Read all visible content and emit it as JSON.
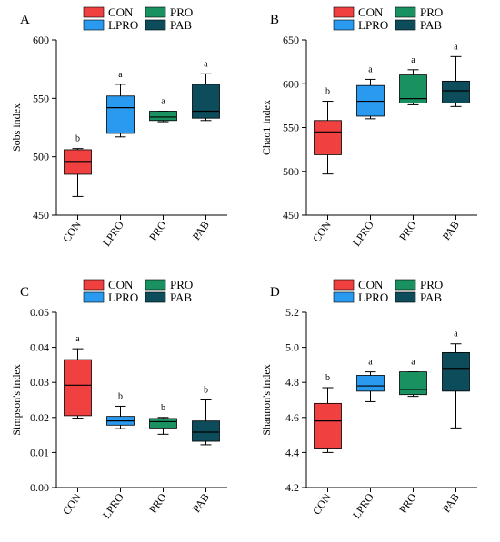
{
  "colors": {
    "CON": "#f04040",
    "LPRO": "#2a9af0",
    "PRO": "#1a9160",
    "PAB": "#0d4c5a"
  },
  "chart_data": [
    {
      "type": "box",
      "panel": "A",
      "ylabel": "Sobs index",
      "ylim": [
        450,
        600
      ],
      "yticks": [
        "450",
        "500",
        "550",
        "600"
      ],
      "legend": [
        "CON",
        "PRO",
        "LPRO",
        "PAB"
      ],
      "categories": [
        "CON",
        "LPRO",
        "PRO",
        "PAB"
      ],
      "boxes": [
        {
          "min": 466,
          "q1": 485,
          "median": 496,
          "q3": 506,
          "max": 507,
          "sig": "b"
        },
        {
          "min": 517,
          "q1": 520,
          "median": 542,
          "q3": 552,
          "max": 562,
          "sig": "a"
        },
        {
          "min": 530,
          "q1": 531,
          "median": 534,
          "q3": 539,
          "max": 539,
          "sig": "a"
        },
        {
          "min": 531,
          "q1": 533,
          "median": 539,
          "q3": 562,
          "max": 571,
          "sig": "a"
        }
      ]
    },
    {
      "type": "box",
      "panel": "B",
      "ylabel": "Chao1 index",
      "ylim": [
        450,
        650
      ],
      "yticks": [
        "450",
        "500",
        "550",
        "600",
        "650"
      ],
      "legend": [
        "CON",
        "PRO",
        "LPRO",
        "PAB"
      ],
      "categories": [
        "CON",
        "LPRO",
        "PRO",
        "PAB"
      ],
      "boxes": [
        {
          "min": 497,
          "q1": 519,
          "median": 545,
          "q3": 558,
          "max": 580,
          "sig": "b"
        },
        {
          "min": 560,
          "q1": 563,
          "median": 580,
          "q3": 598,
          "max": 605,
          "sig": "a"
        },
        {
          "min": 576,
          "q1": 578,
          "median": 583,
          "q3": 610,
          "max": 616,
          "sig": "a"
        },
        {
          "min": 574,
          "q1": 578,
          "median": 592,
          "q3": 603,
          "max": 631,
          "sig": "a"
        }
      ]
    },
    {
      "type": "box",
      "panel": "C",
      "ylabel": "Simpson's index",
      "ylim": [
        0.0,
        0.05
      ],
      "yticks": [
        "0.00",
        "0.01",
        "0.02",
        "0.03",
        "0.04",
        "0.05"
      ],
      "legend": [
        "CON",
        "PRO",
        "LPRO",
        "PAB"
      ],
      "categories": [
        "CON",
        "LPRO",
        "PRO",
        "PAB"
      ],
      "boxes": [
        {
          "min": 0.0198,
          "q1": 0.0205,
          "median": 0.0292,
          "q3": 0.0365,
          "max": 0.0396,
          "sig": "a"
        },
        {
          "min": 0.0168,
          "q1": 0.0178,
          "median": 0.019,
          "q3": 0.0203,
          "max": 0.0232,
          "sig": "b"
        },
        {
          "min": 0.0152,
          "q1": 0.017,
          "median": 0.0188,
          "q3": 0.0197,
          "max": 0.02,
          "sig": "b"
        },
        {
          "min": 0.0122,
          "q1": 0.0132,
          "median": 0.0158,
          "q3": 0.019,
          "max": 0.025,
          "sig": "b"
        }
      ]
    },
    {
      "type": "box",
      "panel": "D",
      "ylabel": "Shannon's index",
      "ylim": [
        4.2,
        5.2
      ],
      "yticks": [
        "4.2",
        "4.4",
        "4.6",
        "4.8",
        "5.0",
        "5.2"
      ],
      "legend": [
        "CON",
        "PRO",
        "LPRO",
        "PAB"
      ],
      "categories": [
        "CON",
        "LPRO",
        "PRO",
        "PAB"
      ],
      "boxes": [
        {
          "min": 4.4,
          "q1": 4.42,
          "median": 4.58,
          "q3": 4.68,
          "max": 4.77,
          "sig": "b"
        },
        {
          "min": 4.69,
          "q1": 4.75,
          "median": 4.78,
          "q3": 4.84,
          "max": 4.86,
          "sig": "a"
        },
        {
          "min": 4.72,
          "q1": 4.73,
          "median": 4.76,
          "q3": 4.86,
          "max": 4.86,
          "sig": "a"
        },
        {
          "min": 4.54,
          "q1": 4.75,
          "median": 4.88,
          "q3": 4.97,
          "max": 5.02,
          "sig": "a"
        }
      ]
    }
  ]
}
